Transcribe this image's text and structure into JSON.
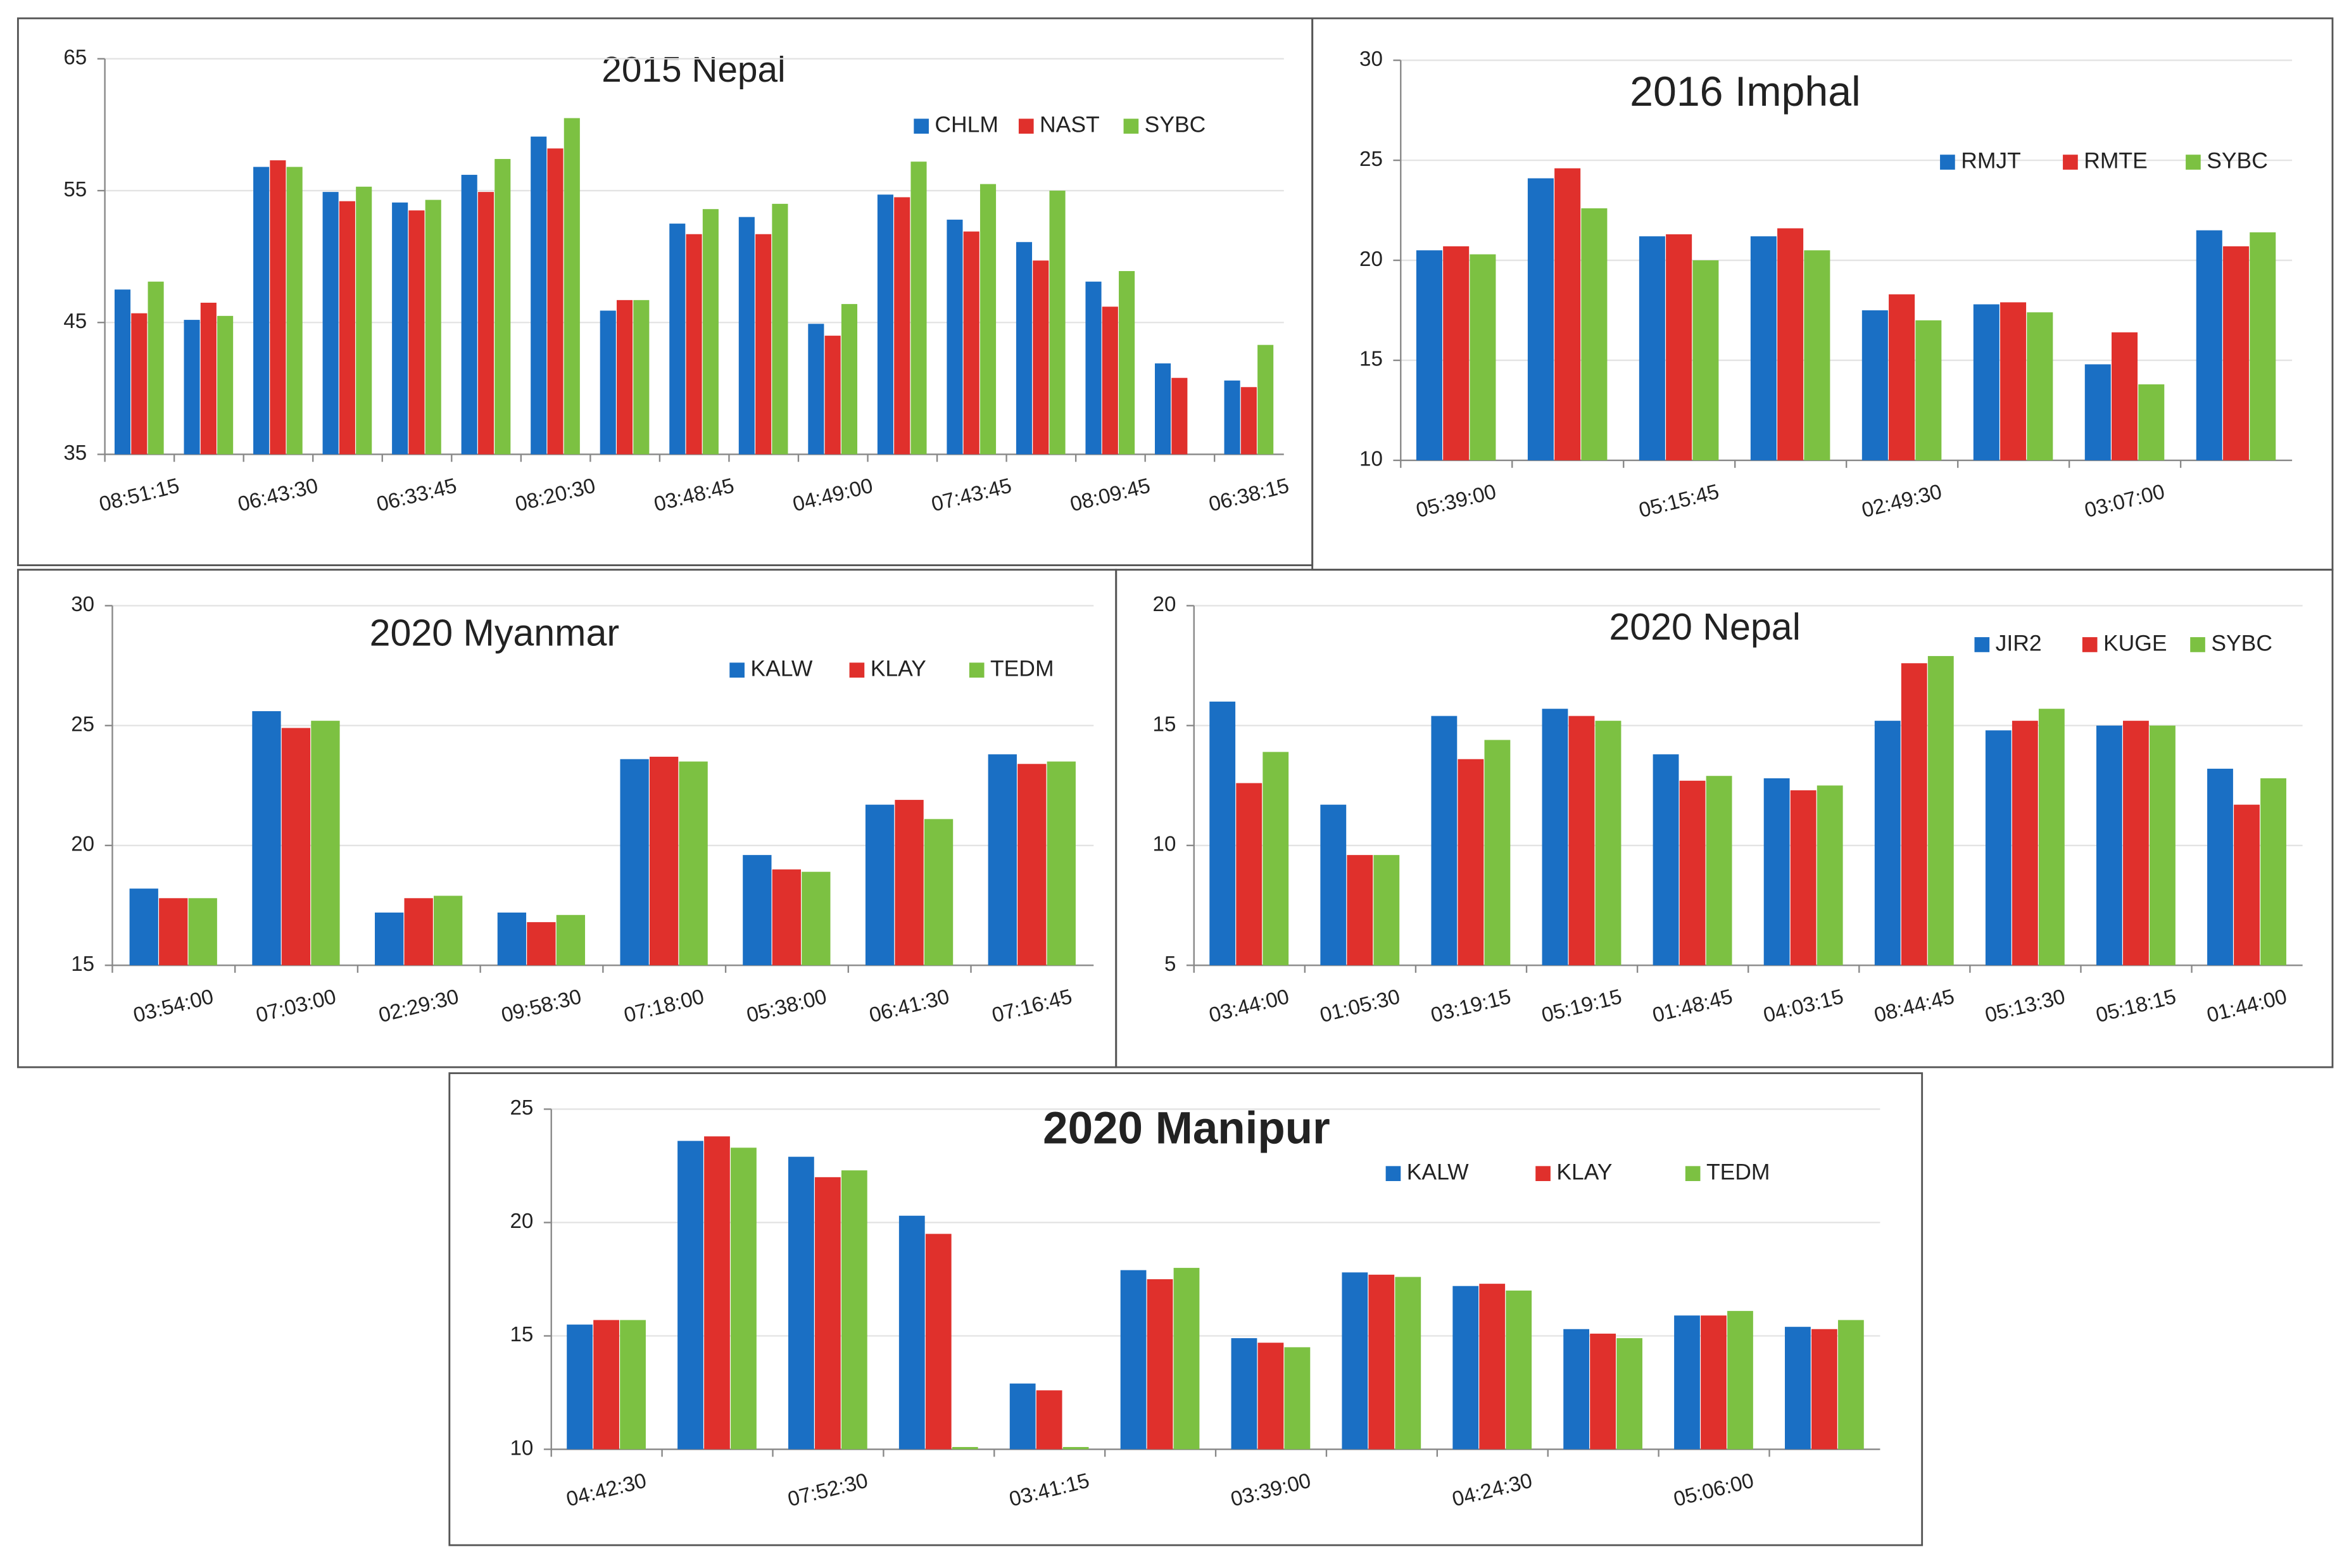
{
  "chart_data": [
    {
      "type": "bar",
      "title": "2015 Nepal",
      "categories": [
        "08:51:15",
        null,
        "06:43:30",
        null,
        "06:33:45",
        null,
        "08:20:30",
        null,
        "03:48:45",
        null,
        "04:49:00",
        null,
        "07:43:45",
        null,
        "08:09:45",
        null,
        "06:38:15"
      ],
      "series": [
        {
          "name": "CHLM",
          "color": "#1a6fc4",
          "values": [
            47.5,
            45.2,
            56.8,
            54.9,
            54.1,
            56.2,
            59.1,
            45.9,
            52.5,
            53.0,
            44.9,
            54.7,
            52.8,
            51.1,
            48.1,
            41.9,
            40.6
          ]
        },
        {
          "name": "NAST",
          "color": "#e0302c",
          "values": [
            45.7,
            46.5,
            57.3,
            54.2,
            53.5,
            54.9,
            58.2,
            46.7,
            51.7,
            51.7,
            44.0,
            54.5,
            51.9,
            49.7,
            46.2,
            40.8,
            40.1
          ]
        },
        {
          "name": "SYBC",
          "color": "#7cc142",
          "values": [
            48.1,
            45.5,
            56.8,
            55.3,
            54.3,
            57.4,
            60.5,
            46.7,
            53.6,
            54.0,
            46.4,
            57.2,
            55.5,
            55.0,
            48.9,
            null,
            43.3
          ]
        }
      ],
      "ylim": [
        35,
        65
      ],
      "yticks": [
        35,
        45,
        55,
        65
      ],
      "grid": true
    },
    {
      "type": "bar",
      "title": "2016 Imphal",
      "categories": [
        "05:39:00",
        null,
        "05:15:45",
        null,
        "02:49:30",
        null,
        "03:07:00",
        null
      ],
      "series": [
        {
          "name": "RMJT",
          "color": "#1a6fc4",
          "values": [
            20.5,
            24.1,
            21.2,
            21.2,
            17.5,
            17.8,
            14.8,
            21.5
          ]
        },
        {
          "name": "RMTE",
          "color": "#e0302c",
          "values": [
            20.7,
            24.6,
            21.3,
            21.6,
            18.3,
            17.9,
            16.4,
            20.7
          ]
        },
        {
          "name": "SYBC",
          "color": "#7cc142",
          "values": [
            20.3,
            22.6,
            20.0,
            20.5,
            17.0,
            17.4,
            13.8,
            21.4
          ]
        }
      ],
      "ylim": [
        10,
        30
      ],
      "yticks": [
        10,
        15,
        20,
        25,
        30
      ],
      "grid": true
    },
    {
      "type": "bar",
      "title": "2020 Myanmar",
      "categories": [
        "03:54:00",
        "07:03:00",
        "02:29:30",
        "09:58:30",
        "07:18:00",
        "05:38:00",
        "06:41:30",
        "07:16:45"
      ],
      "series": [
        {
          "name": "KALW",
          "color": "#1a6fc4",
          "values": [
            18.2,
            25.6,
            17.2,
            17.2,
            23.6,
            19.6,
            21.7,
            23.8
          ]
        },
        {
          "name": "KLAY",
          "color": "#e0302c",
          "values": [
            17.8,
            24.9,
            17.8,
            16.8,
            23.7,
            19.0,
            21.9,
            23.4
          ]
        },
        {
          "name": "TEDM",
          "color": "#7cc142",
          "values": [
            17.8,
            25.2,
            17.9,
            17.1,
            23.5,
            18.9,
            21.1,
            23.5
          ]
        }
      ],
      "ylim": [
        15,
        30
      ],
      "yticks": [
        15,
        20,
        25,
        30
      ],
      "grid": true
    },
    {
      "type": "bar",
      "title": "2020 Nepal",
      "categories": [
        "03:44:00",
        "01:05:30",
        "03:19:15",
        "05:19:15",
        "01:48:45",
        "04:03:15",
        "08:44:45",
        "05:13:30",
        "05:18:15",
        "01:44:00"
      ],
      "series": [
        {
          "name": "JIR2",
          "color": "#1a6fc4",
          "values": [
            16.0,
            11.7,
            15.4,
            15.7,
            13.8,
            12.8,
            15.2,
            14.8,
            15.0,
            13.2
          ]
        },
        {
          "name": "KUGE",
          "color": "#e0302c",
          "values": [
            12.6,
            9.6,
            13.6,
            15.4,
            12.7,
            12.3,
            17.6,
            15.2,
            15.2,
            11.7
          ]
        },
        {
          "name": "SYBC",
          "color": "#7cc142",
          "values": [
            13.9,
            9.6,
            14.4,
            15.2,
            12.9,
            12.5,
            17.9,
            15.7,
            15.0,
            12.8
          ]
        }
      ],
      "ylim": [
        5,
        20
      ],
      "yticks": [
        5,
        10,
        15,
        20
      ],
      "grid": true
    },
    {
      "type": "bar",
      "title": "2020 Manipur",
      "categories": [
        "04:42:30",
        null,
        "07:52:30",
        null,
        "03:41:15",
        null,
        "03:39:00",
        null,
        "04:24:30",
        null,
        "05:06:00",
        null
      ],
      "series": [
        {
          "name": "KALW",
          "color": "#1a6fc4",
          "values": [
            15.5,
            23.6,
            22.9,
            20.3,
            12.9,
            17.9,
            14.9,
            17.8,
            17.2,
            15.3,
            15.9,
            15.4
          ]
        },
        {
          "name": "KLAY",
          "color": "#e0302c",
          "values": [
            15.7,
            23.8,
            22.0,
            19.5,
            12.6,
            17.5,
            14.7,
            17.7,
            17.3,
            15.1,
            15.9,
            15.3
          ]
        },
        {
          "name": "TEDM",
          "color": "#7cc142",
          "values": [
            15.7,
            23.3,
            22.3,
            10.1,
            10.1,
            18.0,
            14.5,
            17.6,
            17.0,
            14.9,
            16.1,
            15.7
          ]
        }
      ],
      "ylim": [
        10,
        25
      ],
      "yticks": [
        10,
        15,
        20,
        25
      ],
      "grid": true
    }
  ]
}
